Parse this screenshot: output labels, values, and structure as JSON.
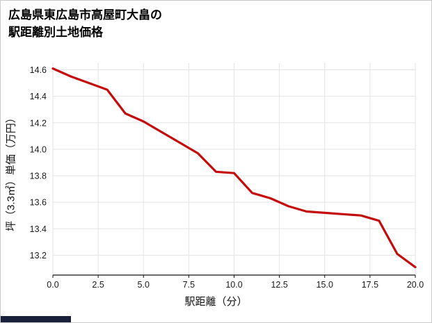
{
  "page": {
    "title_line1": "広島県東広島市高屋町大畠の",
    "title_line2": "駅距離別土地価格"
  },
  "chart_data": {
    "type": "line",
    "title": "広島県東広島市高屋町大畠の駅距離別土地価格",
    "xlabel": "駅距離（分）",
    "ylabel": "坪（3.3㎡）単価（万円）",
    "x": [
      0,
      1,
      2,
      3,
      4,
      5,
      6,
      7,
      8,
      9,
      10,
      11,
      12,
      13,
      14,
      15,
      16,
      17,
      18,
      19,
      20
    ],
    "y": [
      14.61,
      14.55,
      14.5,
      14.45,
      14.27,
      14.21,
      14.13,
      14.05,
      13.97,
      13.83,
      13.82,
      13.67,
      13.63,
      13.57,
      13.53,
      13.52,
      13.51,
      13.5,
      13.46,
      13.21,
      13.11
    ],
    "xlim": [
      0,
      20
    ],
    "ylim": [
      13.05,
      14.65
    ],
    "xticks": [
      0,
      2.5,
      5,
      7.5,
      10,
      12.5,
      15,
      17.5,
      20
    ],
    "xtick_labels": [
      "0.0",
      "2.5",
      "5.0",
      "7.5",
      "10.0",
      "12.5",
      "15.0",
      "17.5",
      "20.0"
    ],
    "yticks": [
      13.2,
      13.4,
      13.6,
      13.8,
      14.0,
      14.2,
      14.4,
      14.6
    ],
    "ytick_labels": [
      "13.2",
      "13.4",
      "13.6",
      "13.8",
      "14.0",
      "14.2",
      "14.4",
      "14.6"
    ],
    "grid": true,
    "legend": "none",
    "line_color": "#c40c0c",
    "grid_color": "#e3e3e3",
    "axis_color": "#111111",
    "tick_label_color": "#1a1a1a"
  }
}
